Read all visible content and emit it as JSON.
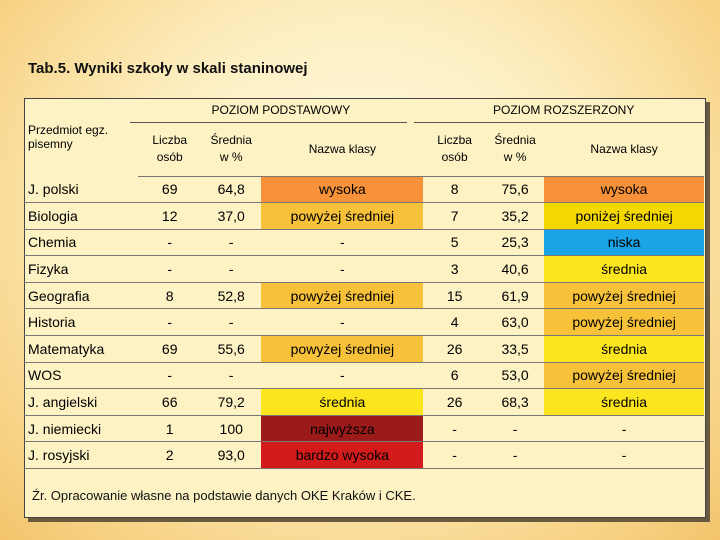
{
  "title": "Tab.5. Wyniki szkoły  w skali staninowej",
  "headers": {
    "subject": "Przedmiot egz. pisemny",
    "group_basic": "POZIOM PODSTAWOWY",
    "group_ext": "POZIOM ROZSZERZONY",
    "count": "Liczba osób",
    "mean": "Średnia w %",
    "class_name": "Nazwa klasy"
  },
  "colors": {
    "wysoka": "#f7923a",
    "powyzej": "#f7c23a",
    "ponizej": "#f5d800",
    "niska": "#1aa3e6",
    "srednia": "#fbe51f",
    "najwyzsza": "#9b1b1b",
    "bardzo": "#d41b1b"
  },
  "rows": [
    {
      "subject": "J. polski",
      "b_count": "69",
      "b_mean": "64,8",
      "b_level": "wysoka",
      "b_color": "wysoka",
      "e_count": "8",
      "e_mean": "75,6",
      "e_level": "wysoka",
      "e_color": "wysoka"
    },
    {
      "subject": "Biologia",
      "b_count": "12",
      "b_mean": "37,0",
      "b_level": "powyżej średniej",
      "b_color": "powyzej",
      "e_count": "7",
      "e_mean": "35,2",
      "e_level": "poniżej średniej",
      "e_color": "ponizej"
    },
    {
      "subject": "Chemia",
      "b_count": "-",
      "b_mean": "-",
      "b_level": "-",
      "b_color": "",
      "e_count": "5",
      "e_mean": "25,3",
      "e_level": "niska",
      "e_color": "niska"
    },
    {
      "subject": "Fizyka",
      "b_count": "-",
      "b_mean": "-",
      "b_level": "-",
      "b_color": "",
      "e_count": "3",
      "e_mean": "40,6",
      "e_level": "średnia",
      "e_color": "srednia"
    },
    {
      "subject": "Geografia",
      "b_count": "8",
      "b_mean": "52,8",
      "b_level": "powyżej średniej",
      "b_color": "powyzej",
      "e_count": "15",
      "e_mean": "61,9",
      "e_level": "powyżej średniej",
      "e_color": "powyzej"
    },
    {
      "subject": "Historia",
      "b_count": "-",
      "b_mean": "-",
      "b_level": "-",
      "b_color": "",
      "e_count": "4",
      "e_mean": "63,0",
      "e_level": "powyżej średniej",
      "e_color": "powyzej"
    },
    {
      "subject": "Matematyka",
      "b_count": "69",
      "b_mean": "55,6",
      "b_level": "powyżej średniej",
      "b_color": "powyzej",
      "e_count": "26",
      "e_mean": "33,5",
      "e_level": "średnia",
      "e_color": "srednia"
    },
    {
      "subject": "WOS",
      "b_count": "-",
      "b_mean": "-",
      "b_level": "-",
      "b_color": "",
      "e_count": "6",
      "e_mean": "53,0",
      "e_level": "powyżej średniej",
      "e_color": "powyzej"
    },
    {
      "subject": "J. angielski",
      "b_count": "66",
      "b_mean": "79,2",
      "b_level": "średnia",
      "b_color": "srednia",
      "e_count": "26",
      "e_mean": "68,3",
      "e_level": "średnia",
      "e_color": "srednia"
    },
    {
      "subject": "J. niemiecki",
      "b_count": "1",
      "b_mean": "100",
      "b_level": "najwyższa",
      "b_color": "najwyzsza",
      "e_count": "-",
      "e_mean": "-",
      "e_level": "-",
      "e_color": ""
    },
    {
      "subject": "J. rosyjski",
      "b_count": "2",
      "b_mean": "93,0",
      "b_level": "bardzo wysoka",
      "b_color": "bardzo",
      "e_count": "-",
      "e_mean": "-",
      "e_level": "-",
      "e_color": ""
    }
  ],
  "source": "Źr. Opracowanie własne na podstawie danych OKE Kraków i CKE."
}
